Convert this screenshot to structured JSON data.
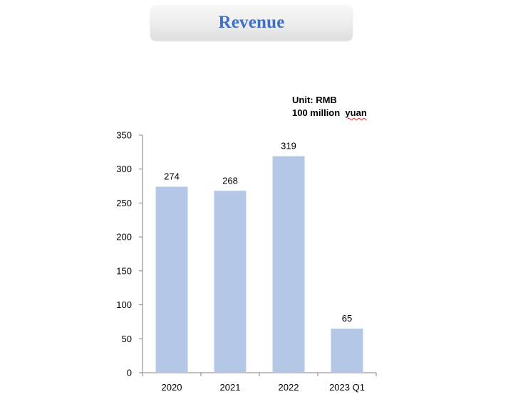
{
  "header": {
    "title": "Revenue"
  },
  "unit_note": {
    "line1": "Unit: RMB",
    "line2_prefix": "100 million  ",
    "line2_word": "yuan"
  },
  "colors": {
    "bar": "#b4c7e7",
    "title": "#3f6fc6",
    "axis": "#7f7f7f"
  },
  "chart_data": {
    "type": "bar",
    "title": "Revenue",
    "categories": [
      "2020",
      "2021",
      "2022",
      "2023 Q1"
    ],
    "values": [
      274,
      268,
      319,
      65
    ],
    "value_labels": [
      "274",
      "268",
      "319",
      "65"
    ],
    "xlabel": "",
    "ylabel": "",
    "ylim": [
      0,
      350
    ],
    "yticks": [
      0,
      50,
      100,
      150,
      200,
      250,
      300,
      350
    ],
    "ytick_labels": [
      "0",
      "50",
      "100",
      "150",
      "200",
      "250",
      "300",
      "350"
    ],
    "grid": false,
    "legend": "none"
  }
}
